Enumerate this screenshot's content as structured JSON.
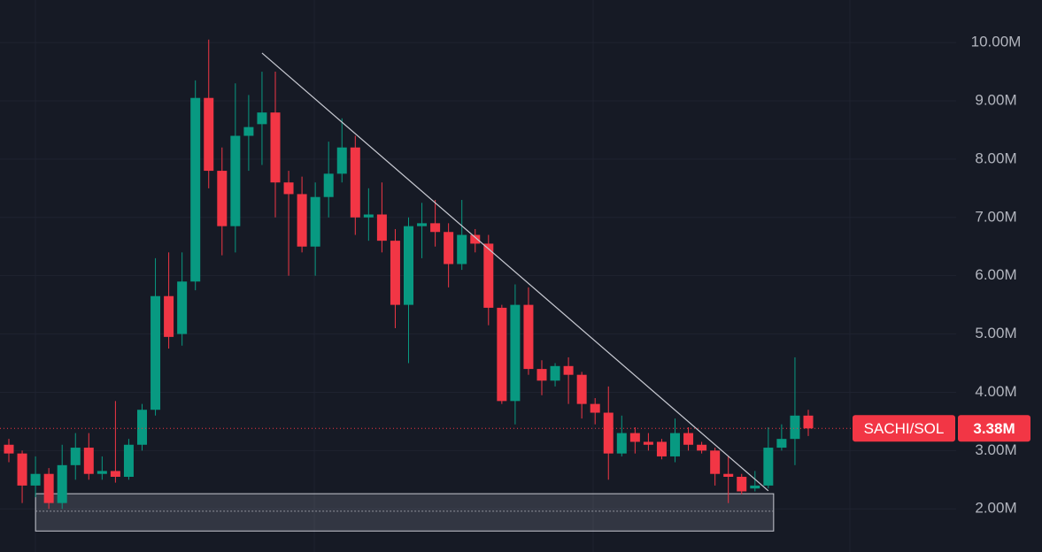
{
  "chart_data": {
    "type": "candlestick",
    "open": [
      3.1,
      2.95,
      2.4,
      2.6,
      2.1,
      2.75,
      3.05,
      2.6,
      2.65,
      2.55,
      3.1,
      3.7,
      5.65,
      5.0,
      5.9,
      9.05,
      7.8,
      6.85,
      8.4,
      8.6,
      8.8,
      7.6,
      7.4,
      6.5,
      7.35,
      7.75,
      8.2,
      7.0,
      7.05,
      6.6,
      5.5,
      6.85,
      6.9,
      6.75,
      6.2,
      6.7,
      6.55,
      5.45,
      3.85,
      5.5,
      4.4,
      4.2,
      4.45,
      4.3,
      3.8,
      3.65,
      2.95,
      3.3,
      3.15,
      3.15,
      2.9,
      3.3,
      3.1,
      3.0,
      2.6,
      2.55,
      2.35,
      2.4,
      3.05,
      3.2,
      3.6
    ],
    "high": [
      3.2,
      3.0,
      2.9,
      2.7,
      3.1,
      3.3,
      3.3,
      2.9,
      3.85,
      3.2,
      3.8,
      6.3,
      6.4,
      6.4,
      9.35,
      10.05,
      8.2,
      9.3,
      9.1,
      9.5,
      9.5,
      7.8,
      7.7,
      7.6,
      8.3,
      8.7,
      8.4,
      7.5,
      7.6,
      6.8,
      7.0,
      7.25,
      7.3,
      6.9,
      7.3,
      6.8,
      6.7,
      5.5,
      5.85,
      5.8,
      4.55,
      4.5,
      4.6,
      4.35,
      3.9,
      4.1,
      3.6,
      3.4,
      3.3,
      3.2,
      3.55,
      3.4,
      3.15,
      3.05,
      2.9,
      2.6,
      2.65,
      3.4,
      3.45,
      4.6,
      3.7
    ],
    "low": [
      2.8,
      2.1,
      2.2,
      2.0,
      2.0,
      2.5,
      2.5,
      2.5,
      2.45,
      2.5,
      3.0,
      3.6,
      4.75,
      4.8,
      5.75,
      7.5,
      6.35,
      6.4,
      7.8,
      7.9,
      7.0,
      6.0,
      6.4,
      6.0,
      7.0,
      7.6,
      6.7,
      6.6,
      6.4,
      5.1,
      4.5,
      6.3,
      6.5,
      5.8,
      6.1,
      6.4,
      5.15,
      3.8,
      3.45,
      4.3,
      3.95,
      4.1,
      3.8,
      3.55,
      3.45,
      2.5,
      2.9,
      2.95,
      3.0,
      2.85,
      2.8,
      3.0,
      2.95,
      2.4,
      2.1,
      2.25,
      2.3,
      2.35,
      3.0,
      2.75,
      3.25
    ],
    "close": [
      2.95,
      2.4,
      2.6,
      2.1,
      2.75,
      3.05,
      2.6,
      2.65,
      2.55,
      3.1,
      3.7,
      5.65,
      4.95,
      5.9,
      9.05,
      7.8,
      6.85,
      8.4,
      8.55,
      8.8,
      7.6,
      7.4,
      6.5,
      7.35,
      7.75,
      8.2,
      7.0,
      7.05,
      6.6,
      5.5,
      6.85,
      6.9,
      6.75,
      6.2,
      6.7,
      6.55,
      5.45,
      3.85,
      5.5,
      4.4,
      4.2,
      4.45,
      4.3,
      3.8,
      3.65,
      2.95,
      3.3,
      3.15,
      3.1,
      2.9,
      3.3,
      3.1,
      3.0,
      2.6,
      2.55,
      2.3,
      2.4,
      3.05,
      3.2,
      3.6,
      3.38
    ],
    "up_color": "#089981",
    "down_color": "#f23645",
    "ylim": [
      1.26,
      10.73
    ],
    "yticks": [
      {
        "value": 10,
        "label": "10.00M"
      },
      {
        "value": 9,
        "label": "9.00M"
      },
      {
        "value": 8,
        "label": "8.00M"
      },
      {
        "value": 7,
        "label": "7.00M"
      },
      {
        "value": 6,
        "label": "6.00M"
      },
      {
        "value": 5,
        "label": "5.00M"
      },
      {
        "value": 4,
        "label": "4.00M"
      },
      {
        "value": 3,
        "label": "3.00M"
      },
      {
        "value": 2,
        "label": "2.00M"
      }
    ],
    "grid": true,
    "symbol": "SACHI/SOL",
    "last_price": {
      "value": 3.38,
      "label": "3.38M"
    },
    "trendline": {
      "start_index": 19,
      "start_value": 9.82,
      "end_index": 57,
      "end_value": 2.31
    },
    "range_box": {
      "start_index": 3,
      "end_index": 57,
      "top": 2.26,
      "bottom": 1.62,
      "mid": 1.96
    }
  }
}
